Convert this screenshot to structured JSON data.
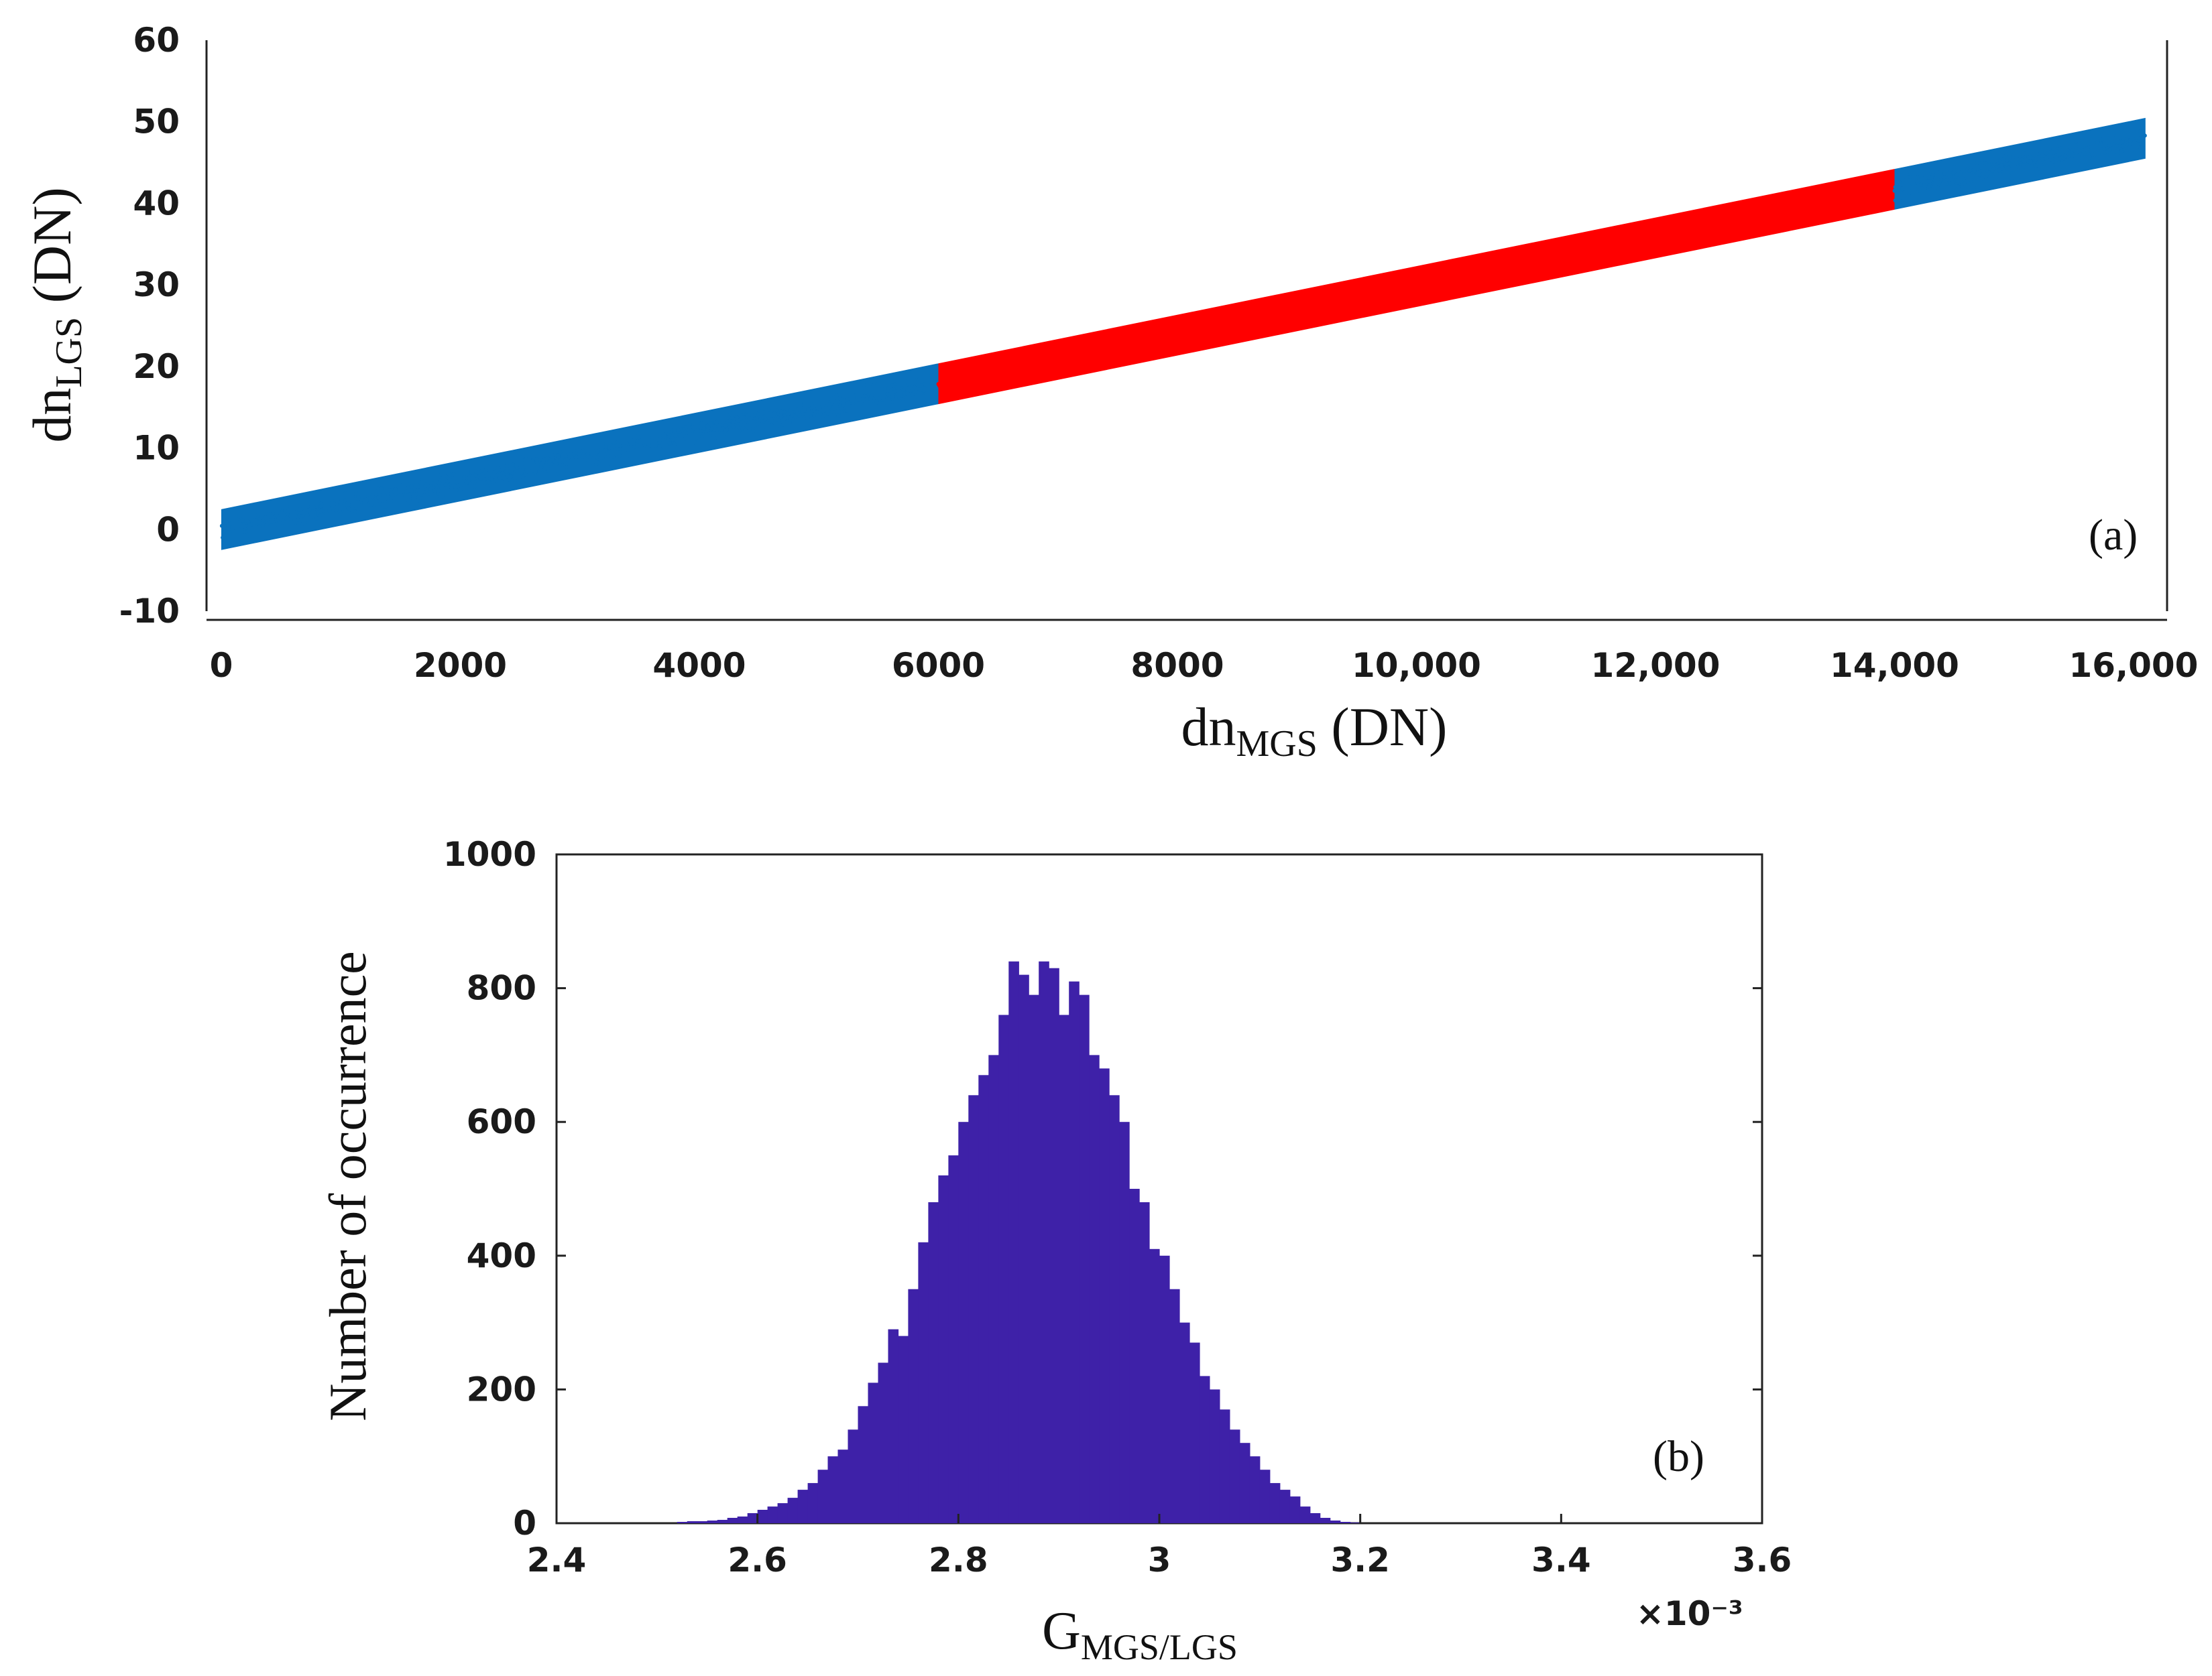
{
  "chart_data": [
    {
      "type": "scatter",
      "panel_label": "(a)",
      "xlabel": {
        "main": "dn",
        "sub": "MGS",
        "unit": " (DN)"
      },
      "ylabel": {
        "main": "dn",
        "sub": "LGS",
        "unit": " (DN)"
      },
      "xlim": [
        0,
        16000
      ],
      "ylim": [
        -10,
        60
      ],
      "xticks": [
        0,
        2000,
        4000,
        6000,
        8000,
        10000,
        12000,
        14000,
        16000
      ],
      "xtick_labels": [
        "0",
        "2000",
        "4000",
        "6000",
        "8000",
        "10,000",
        "12,000",
        "14,000",
        "16,000"
      ],
      "yticks": [
        -10,
        0,
        10,
        20,
        30,
        40,
        50,
        60
      ],
      "ytick_labels": [
        "-10",
        "0",
        "10",
        "20",
        "30",
        "40",
        "50",
        "60"
      ],
      "series": [
        {
          "color": "#0a72be",
          "x_range": [
            0,
            6000
          ],
          "trend": {
            "slope": 0.00298,
            "intercept": 0
          },
          "spread": 2.5
        },
        {
          "color": "#ff0000",
          "x_range": [
            6000,
            14000
          ],
          "trend": {
            "slope": 0.00298,
            "intercept": 0
          },
          "spread": 2.5
        },
        {
          "color": "#0a72be",
          "x_range": [
            14000,
            16100
          ],
          "trend": {
            "slope": 0.00298,
            "intercept": 0
          },
          "spread": 2.5
        }
      ],
      "grid": false,
      "legend": false
    },
    {
      "type": "bar",
      "subtype": "histogram",
      "panel_label": "(b)",
      "xlabel": {
        "main": "G",
        "sub": "MGS/LGS"
      },
      "ylabel": "Number of occurrence",
      "x_multiplier": "×10⁻³",
      "xlim": [
        2.4,
        3.6
      ],
      "ylim": [
        0,
        1000
      ],
      "xticks": [
        2.4,
        2.6,
        2.8,
        3.0,
        3.2,
        3.4,
        3.6
      ],
      "xtick_labels": [
        "2.4",
        "2.6",
        "2.8",
        "3",
        "3.2",
        "3.4",
        "3.6"
      ],
      "yticks": [
        0,
        200,
        400,
        600,
        800,
        1000
      ],
      "ytick_labels": [
        "0",
        "200",
        "400",
        "600",
        "800",
        "1000"
      ],
      "bin_start": 2.5,
      "bin_width": 0.01,
      "counts": [
        0,
        0,
        2,
        3,
        3,
        4,
        5,
        8,
        10,
        15,
        20,
        25,
        30,
        38,
        50,
        60,
        80,
        100,
        110,
        140,
        175,
        210,
        240,
        290,
        280,
        350,
        420,
        480,
        520,
        550,
        600,
        640,
        670,
        700,
        760,
        840,
        820,
        790,
        840,
        830,
        760,
        810,
        790,
        700,
        680,
        640,
        600,
        500,
        480,
        410,
        400,
        350,
        300,
        270,
        220,
        200,
        170,
        140,
        120,
        100,
        80,
        60,
        50,
        40,
        25,
        15,
        8,
        4,
        2,
        1
      ],
      "bar_color": "#3e21a8",
      "grid": false,
      "legend": false
    }
  ]
}
